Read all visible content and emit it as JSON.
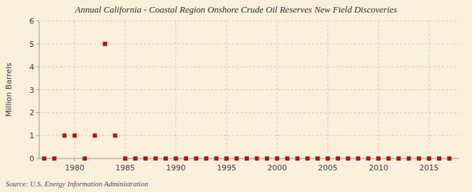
{
  "chart_data": {
    "type": "scatter",
    "title": "Annual California - Coastal Region Onshore Crude Oil Reserves New Field Discoveries",
    "y_label": "Million Barrels",
    "annotations": [
      "Source: U.S. Energy Information Administration"
    ],
    "x": [
      1977,
      1978,
      1979,
      1980,
      1981,
      1982,
      1983,
      1984,
      1985,
      1986,
      1987,
      1988,
      1989,
      1990,
      1991,
      1992,
      1993,
      1994,
      1995,
      1996,
      1997,
      1998,
      1999,
      2000,
      2001,
      2002,
      2003,
      2004,
      2005,
      2006,
      2007,
      2008,
      2009,
      2010,
      2011,
      2012,
      2013,
      2014,
      2015,
      2016,
      2017
    ],
    "values": [
      0.0,
      0.0,
      1.0,
      1.0,
      0.0,
      1.0,
      5.0,
      1.0,
      0.0,
      0.0,
      0.0,
      0.0,
      0.0,
      0.0,
      0.0,
      0.0,
      0.0,
      0.0,
      0.0,
      0.0,
      0.0,
      0.0,
      0.0,
      0.0,
      0.0,
      0.0,
      0.0,
      0.0,
      0.0,
      0.0,
      0.0,
      0.0,
      0.0,
      0.0,
      0.0,
      0.0,
      0.0,
      0.0,
      0.0,
      0.0,
      0.0
    ],
    "color": "#bb1111",
    "marker": "square",
    "xlim": [
      1976.5,
      2018
    ],
    "ylim": [
      0,
      6
    ],
    "xticks": [
      1980,
      1985,
      1990,
      1995,
      2000,
      2005,
      2010,
      2015
    ],
    "yticks": [
      0,
      1,
      2,
      3,
      4,
      5,
      6
    ],
    "grid": true
  }
}
